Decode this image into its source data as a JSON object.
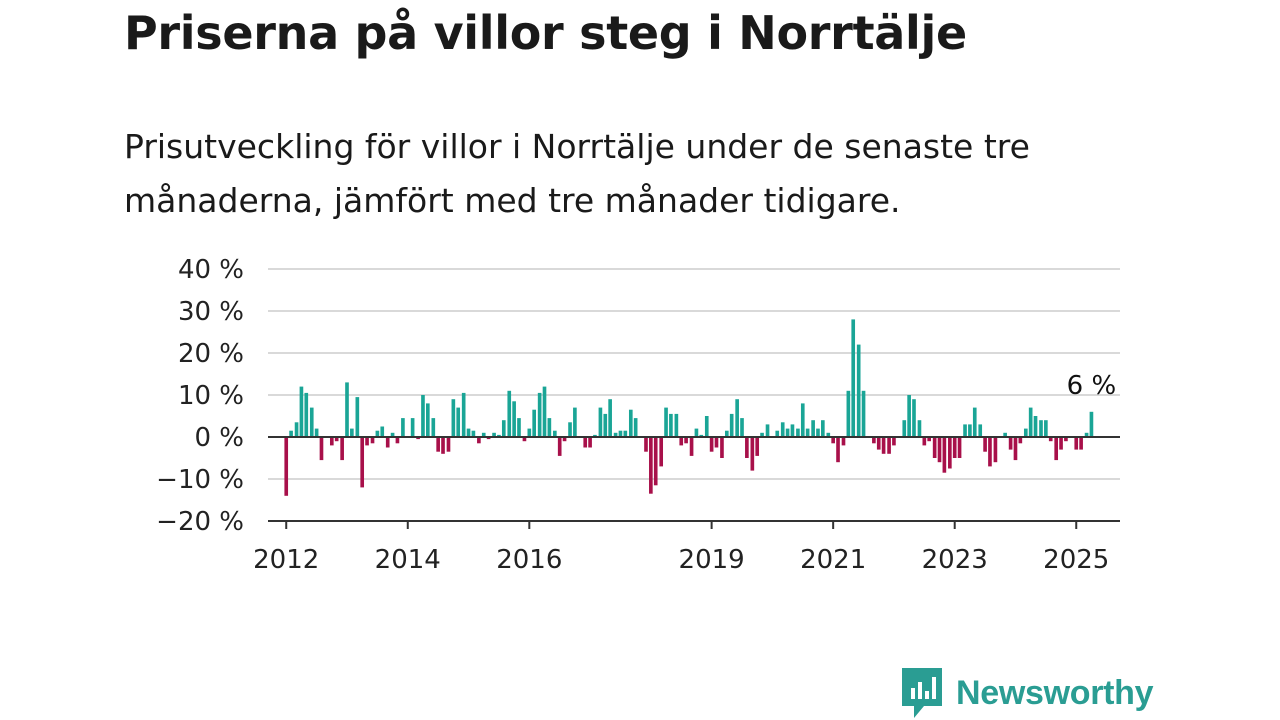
{
  "title": "Priserna på villor steg i Norrtälje",
  "subtitle": "Prisutveckling för villor i Norrtälje under de senaste tre månaderna, jämfört med tre månader tidigare.",
  "brand": {
    "name": "Newsworthy",
    "icon": "newsworthy-logo-icon",
    "color": "#2a9d93"
  },
  "chart_data": {
    "type": "bar",
    "x_range": [
      2011.7,
      2025.72
    ],
    "ylim": [
      -20,
      40
    ],
    "y_ticks": [
      -20,
      -10,
      0,
      10,
      20,
      30,
      40
    ],
    "y_tick_labels": [
      "−20 %",
      "−10 %",
      "0 %",
      "10 %",
      "20 %",
      "30 %",
      "40 %"
    ],
    "x_ticks": [
      2012,
      2014,
      2016,
      2019,
      2021,
      2023,
      2025
    ],
    "x_tick_labels": [
      "2012",
      "2014",
      "2016",
      "2019",
      "2021",
      "2023",
      "2025"
    ],
    "grid": true,
    "colors": {
      "positive": "#1aa596",
      "negative": "#a8104a",
      "grid": "#d9d9d9",
      "zero_line": "#333333"
    },
    "annotation": {
      "text": "6 %",
      "x": 2025.25,
      "y": 6
    },
    "x": [
      2012.0,
      2012.08,
      2012.17,
      2012.25,
      2012.33,
      2012.42,
      2012.5,
      2012.58,
      2012.67,
      2012.75,
      2012.83,
      2012.92,
      2013.0,
      2013.08,
      2013.17,
      2013.25,
      2013.33,
      2013.42,
      2013.5,
      2013.58,
      2013.67,
      2013.75,
      2013.83,
      2013.92,
      2014.0,
      2014.08,
      2014.17,
      2014.25,
      2014.33,
      2014.42,
      2014.5,
      2014.58,
      2014.67,
      2014.75,
      2014.83,
      2014.92,
      2015.0,
      2015.08,
      2015.17,
      2015.25,
      2015.33,
      2015.42,
      2015.5,
      2015.58,
      2015.67,
      2015.75,
      2015.83,
      2015.92,
      2016.0,
      2016.08,
      2016.17,
      2016.25,
      2016.33,
      2016.42,
      2016.5,
      2016.58,
      2016.67,
      2016.75,
      2016.83,
      2016.92,
      2017.0,
      2017.08,
      2017.17,
      2017.25,
      2017.33,
      2017.42,
      2017.5,
      2017.58,
      2017.67,
      2017.75,
      2017.83,
      2017.92,
      2018.0,
      2018.08,
      2018.17,
      2018.25,
      2018.33,
      2018.42,
      2018.5,
      2018.58,
      2018.67,
      2018.75,
      2018.83,
      2018.92,
      2019.0,
      2019.08,
      2019.17,
      2019.25,
      2019.33,
      2019.42,
      2019.5,
      2019.58,
      2019.67,
      2019.75,
      2019.83,
      2019.92,
      2020.0,
      2020.08,
      2020.17,
      2020.25,
      2020.33,
      2020.42,
      2020.5,
      2020.58,
      2020.67,
      2020.75,
      2020.83,
      2020.92,
      2021.0,
      2021.08,
      2021.17,
      2021.25,
      2021.33,
      2021.42,
      2021.5,
      2021.58,
      2021.67,
      2021.75,
      2021.83,
      2021.92,
      2022.0,
      2022.08,
      2022.17,
      2022.25,
      2022.33,
      2022.42,
      2022.5,
      2022.58,
      2022.67,
      2022.75,
      2022.83,
      2022.92,
      2023.0,
      2023.08,
      2023.17,
      2023.25,
      2023.33,
      2023.42,
      2023.5,
      2023.58,
      2023.67,
      2023.75,
      2023.83,
      2023.92,
      2024.0,
      2024.08,
      2024.17,
      2024.25,
      2024.33,
      2024.42,
      2024.5,
      2024.58,
      2024.67,
      2024.75,
      2024.83,
      2024.92,
      2025.0,
      2025.08,
      2025.17,
      2025.25
    ],
    "values": [
      -14,
      1.5,
      3.5,
      12,
      10.5,
      7,
      2,
      -5.5,
      0,
      -2,
      -1,
      -5.5,
      13,
      2,
      9.5,
      -12,
      -2,
      -1.5,
      1.5,
      2.5,
      -2.5,
      1,
      -1.5,
      4.5,
      0,
      4.5,
      -0.5,
      10,
      8,
      4.5,
      -3.5,
      -4,
      -3.5,
      9,
      7,
      10.5,
      2,
      1.5,
      -1.5,
      1,
      -0.5,
      1,
      0.5,
      4,
      11,
      8.5,
      4.5,
      -1,
      2,
      6.5,
      10.5,
      12,
      4.5,
      1.5,
      -4.5,
      -1,
      3.5,
      7,
      0,
      -2.5,
      -2.5,
      0.5,
      7,
      5.5,
      9,
      1,
      1.5,
      1.5,
      6.5,
      4.5,
      0,
      -3.5,
      -13.5,
      -11.5,
      -7,
      7,
      5.5,
      5.5,
      -2,
      -1.5,
      -4.5,
      2,
      0.5,
      5,
      -3.5,
      -2.5,
      -5,
      1.5,
      5.5,
      9,
      4.5,
      -5,
      -8,
      -4.5,
      1,
      3,
      0,
      1.5,
      3.5,
      2,
      3,
      2,
      8,
      2,
      4,
      2,
      4,
      1,
      -1.5,
      -6,
      -2,
      11,
      28,
      22,
      11,
      0,
      -1.5,
      -3,
      -4,
      -4,
      -2,
      0,
      4,
      10,
      9,
      4,
      -2,
      -1,
      -5,
      -6,
      -8.5,
      -7.5,
      -5,
      -5,
      3,
      3,
      7,
      3,
      -3.5,
      -7,
      -6,
      0,
      1,
      -3,
      -5.5,
      -1.5,
      2,
      7,
      5,
      4,
      4,
      -1,
      -5.5,
      -3,
      -1,
      0,
      -3,
      -3,
      1,
      6
    ]
  }
}
